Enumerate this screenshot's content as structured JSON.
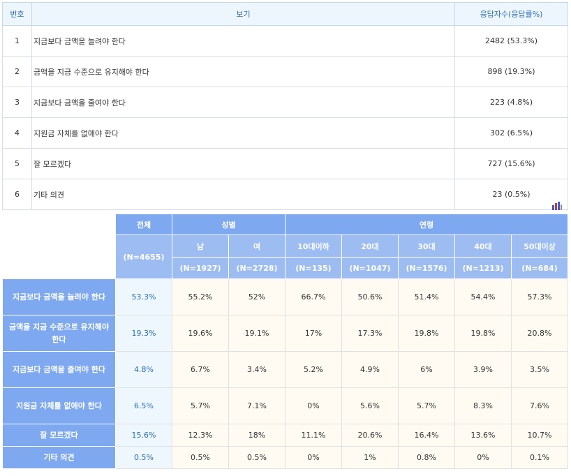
{
  "top_table": {
    "headers": [
      "번호",
      "보기",
      "응답자수(응답률%)"
    ],
    "rows": [
      {
        "no": "1",
        "option": "지금보다 금액을 늘려야 한다",
        "result": "2482 (53.3%)"
      },
      {
        "no": "2",
        "option": "금액을 지금 수준으로 유지해야 한다",
        "result": "898 (19.3%)"
      },
      {
        "no": "3",
        "option": "지금보다 금액을 줄여야 한다",
        "result": "223 (4.8%)"
      },
      {
        "no": "4",
        "option": "지원금 자체를 없애야 한다",
        "result": "302 (6.5%)"
      },
      {
        "no": "5",
        "option": "잘 모르겠다",
        "result": "727 (15.6%)"
      },
      {
        "no": "6",
        "option": "기타 의견",
        "result": "23 (0.5%)"
      }
    ]
  },
  "chart_icon": "bar-chart-icon",
  "cross_table": {
    "total_label": "전체",
    "total_n": "(N=4655)",
    "gender_label": "성별",
    "age_label": "연령",
    "groups": [
      {
        "label": "남",
        "n": "(N=1927)"
      },
      {
        "label": "여",
        "n": "(N=2728)"
      },
      {
        "label": "10대이하",
        "n": "(N=135)"
      },
      {
        "label": "20대",
        "n": "(N=1047)"
      },
      {
        "label": "30대",
        "n": "(N=1576)"
      },
      {
        "label": "40대",
        "n": "(N=1213)"
      },
      {
        "label": "50대이상",
        "n": "(N=684)"
      }
    ],
    "rows": [
      {
        "label": "지금보다 금액을 늘려야 한다",
        "total": "53.3%",
        "values": [
          "55.2%",
          "52%",
          "66.7%",
          "50.6%",
          "51.4%",
          "54.4%",
          "57.3%"
        ]
      },
      {
        "label": "금액을 지금 수준으로 유지해야 한다",
        "total": "19.3%",
        "values": [
          "19.6%",
          "19.1%",
          "17%",
          "17.3%",
          "19.8%",
          "19.8%",
          "20.8%"
        ]
      },
      {
        "label": "지금보다 금액을 줄여야 한다",
        "total": "4.8%",
        "values": [
          "6.7%",
          "3.4%",
          "5.2%",
          "4.9%",
          "6%",
          "3.9%",
          "3.5%"
        ]
      },
      {
        "label": "지원금 자체를 없애야 한다",
        "total": "6.5%",
        "values": [
          "5.7%",
          "7.1%",
          "0%",
          "5.6%",
          "5.7%",
          "8.3%",
          "7.6%"
        ]
      },
      {
        "label": "잘 모르겠다",
        "total": "15.6%",
        "values": [
          "12.3%",
          "18%",
          "11.1%",
          "20.6%",
          "16.4%",
          "13.6%",
          "10.7%"
        ]
      },
      {
        "label": "기타 의견",
        "total": "0.5%",
        "values": [
          "0.5%",
          "0.5%",
          "0%",
          "1%",
          "0.8%",
          "0%",
          "0.1%"
        ]
      }
    ]
  },
  "colors": {
    "header_blue": "#7ea8ef",
    "sub_header_blue": "#9cbcf2",
    "total_text": "#2a6ebb",
    "cell_bg": "#fffbf2"
  }
}
